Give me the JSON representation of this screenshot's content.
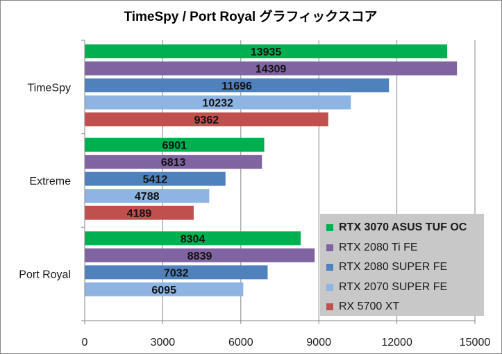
{
  "chart_data": {
    "type": "bar",
    "orientation": "horizontal",
    "title": "TimeSpy / Port Royal グラフィックスコア",
    "categories": [
      "TimeSpy",
      "Extreme",
      "Port Royal"
    ],
    "series": [
      {
        "name": "RTX 3070 ASUS TUF OC",
        "color": "#00b050",
        "values": [
          13935,
          6901,
          8304
        ],
        "bold": true
      },
      {
        "name": "RTX 2080 Ti FE",
        "color": "#8064a2",
        "values": [
          14309,
          6813,
          8839
        ]
      },
      {
        "name": "RTX 2080 SUPER FE",
        "color": "#4f81bd",
        "values": [
          11696,
          5412,
          7032
        ]
      },
      {
        "name": "RTX 2070 SUPER FE",
        "color": "#8db4e2",
        "values": [
          10232,
          4788,
          6095
        ]
      },
      {
        "name": "RX 5700 XT",
        "color": "#c0504d",
        "values": [
          9362,
          4189,
          null
        ]
      }
    ],
    "xlim": [
      0,
      15000
    ],
    "x_ticks": [
      0,
      3000,
      6000,
      9000,
      12000,
      15000
    ],
    "grid": true,
    "legend_position": "bottom-right"
  }
}
